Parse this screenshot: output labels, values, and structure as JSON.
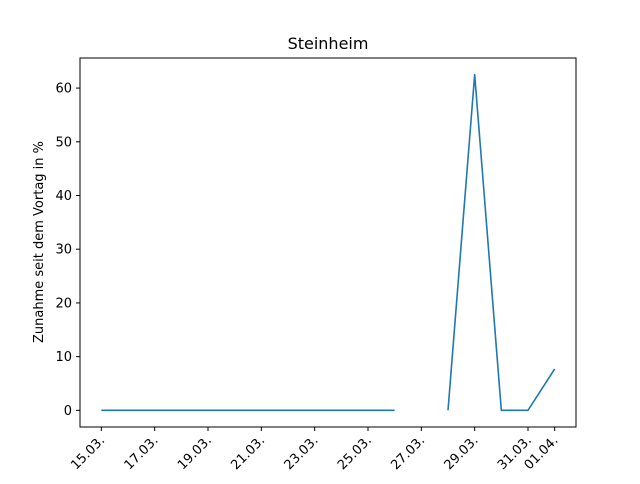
{
  "chart_data": {
    "type": "line",
    "title": "Steinheim",
    "xlabel": "",
    "ylabel": "Zunahme seit dem Vortag in %",
    "x_tick_labels": [
      "15.03.",
      "17.03.",
      "19.03.",
      "21.03.",
      "23.03.",
      "25.03.",
      "27.03.",
      "29.03.",
      "31.03.",
      "01.04."
    ],
    "x_tick_days": [
      15,
      17,
      19,
      21,
      23,
      25,
      27,
      29,
      31,
      32
    ],
    "ylim": [
      -3.1,
      65.6
    ],
    "xlim_days": [
      14.2,
      32.8
    ],
    "y_ticks": [
      0,
      10,
      20,
      30,
      40,
      50,
      60
    ],
    "grid": false,
    "legend": "none",
    "series": [
      {
        "color": "#1f77b4",
        "points": [
          {
            "date": "15.03.",
            "value": 0
          },
          {
            "date": "16.03.",
            "value": 0
          },
          {
            "date": "17.03.",
            "value": 0
          },
          {
            "date": "18.03.",
            "value": 0
          },
          {
            "date": "19.03.",
            "value": 0
          },
          {
            "date": "20.03.",
            "value": 0
          },
          {
            "date": "21.03.",
            "value": 0
          },
          {
            "date": "22.03.",
            "value": 0
          },
          {
            "date": "23.03.",
            "value": 0
          },
          {
            "date": "24.03.",
            "value": 0
          },
          {
            "date": "25.03.",
            "value": 0
          },
          {
            "date": "26.03.",
            "value": 0
          },
          {
            "date": "27.03.",
            "value": null
          },
          {
            "date": "28.03.",
            "value": 0
          },
          {
            "date": "29.03.",
            "value": 62.5
          },
          {
            "date": "30.03.",
            "value": 0
          },
          {
            "date": "31.03.",
            "value": 0
          },
          {
            "date": "01.04.",
            "value": 7.7
          }
        ]
      }
    ]
  }
}
